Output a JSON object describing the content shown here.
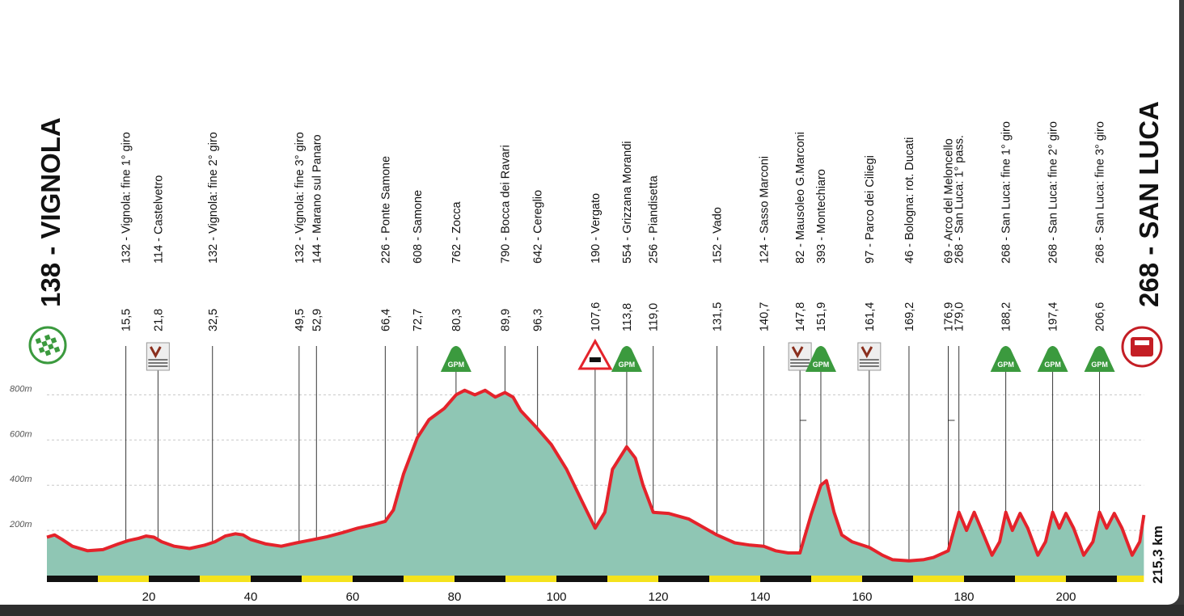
{
  "chart_data": {
    "type": "area",
    "start": {
      "altitude": "138",
      "name": "VIGNOLA"
    },
    "finish": {
      "altitude": "268",
      "name": "SAN LUCA"
    },
    "total_distance": "215,3 km",
    "ylim": [
      0,
      900
    ],
    "xlim": [
      0,
      215.3
    ],
    "y_ticks": [
      {
        "value": 200,
        "label": "200m"
      },
      {
        "value": 400,
        "label": "400m"
      },
      {
        "value": 600,
        "label": "600m"
      },
      {
        "value": 800,
        "label": "800m"
      }
    ],
    "x_ticks": [
      20,
      40,
      60,
      80,
      100,
      120,
      140,
      160,
      180,
      200
    ],
    "colors": {
      "fill": "#8fc6b4",
      "line": "#e4232b",
      "gpm": "#3b9a3e",
      "scale_black": "#111111",
      "scale_yellow": "#f4e21c"
    },
    "profile": [
      [
        0,
        170
      ],
      [
        1.5,
        180
      ],
      [
        3,
        160
      ],
      [
        5,
        130
      ],
      [
        8,
        110
      ],
      [
        11,
        115
      ],
      [
        14,
        140
      ],
      [
        16,
        155
      ],
      [
        18,
        165
      ],
      [
        19.5,
        175
      ],
      [
        21,
        170
      ],
      [
        22.5,
        150
      ],
      [
        25,
        130
      ],
      [
        28,
        120
      ],
      [
        31,
        135
      ],
      [
        33,
        150
      ],
      [
        35,
        175
      ],
      [
        37,
        185
      ],
      [
        38.5,
        180
      ],
      [
        40,
        160
      ],
      [
        43,
        140
      ],
      [
        46,
        130
      ],
      [
        49,
        145
      ],
      [
        52,
        158
      ],
      [
        55,
        172
      ],
      [
        58,
        190
      ],
      [
        61,
        210
      ],
      [
        64,
        225
      ],
      [
        66.4,
        240
      ],
      [
        68,
        290
      ],
      [
        70,
        450
      ],
      [
        72.7,
        610
      ],
      [
        75,
        690
      ],
      [
        78,
        740
      ],
      [
        80.3,
        800
      ],
      [
        82,
        820
      ],
      [
        84,
        800
      ],
      [
        86,
        820
      ],
      [
        88,
        790
      ],
      [
        89.9,
        810
      ],
      [
        91.5,
        790
      ],
      [
        93,
        730
      ],
      [
        96.3,
        650
      ],
      [
        99,
        580
      ],
      [
        102,
        470
      ],
      [
        105,
        330
      ],
      [
        107.6,
        210
      ],
      [
        109.5,
        280
      ],
      [
        111,
        470
      ],
      [
        113.8,
        570
      ],
      [
        115.5,
        520
      ],
      [
        117,
        400
      ],
      [
        119,
        280
      ],
      [
        122,
        275
      ],
      [
        126,
        250
      ],
      [
        131.5,
        180
      ],
      [
        135,
        145
      ],
      [
        138,
        135
      ],
      [
        140.7,
        130
      ],
      [
        143,
        110
      ],
      [
        145.5,
        100
      ],
      [
        147.8,
        100
      ],
      [
        150,
        270
      ],
      [
        151.9,
        400
      ],
      [
        153,
        420
      ],
      [
        154.5,
        280
      ],
      [
        156,
        180
      ],
      [
        158,
        150
      ],
      [
        161.4,
        125
      ],
      [
        164,
        90
      ],
      [
        166,
        70
      ],
      [
        169.2,
        65
      ],
      [
        172,
        70
      ],
      [
        174,
        80
      ],
      [
        176.9,
        110
      ],
      [
        178,
        200
      ],
      [
        179,
        280
      ],
      [
        180.5,
        200
      ],
      [
        182,
        280
      ],
      [
        183.5,
        200
      ],
      [
        185.5,
        90
      ],
      [
        187,
        150
      ],
      [
        188.2,
        280
      ],
      [
        189.5,
        200
      ],
      [
        191,
        275
      ],
      [
        192.5,
        210
      ],
      [
        194.5,
        90
      ],
      [
        196,
        150
      ],
      [
        197.4,
        280
      ],
      [
        198.7,
        210
      ],
      [
        200,
        275
      ],
      [
        201.5,
        210
      ],
      [
        203.5,
        90
      ],
      [
        205.3,
        150
      ],
      [
        206.6,
        280
      ],
      [
        208,
        210
      ],
      [
        209.5,
        275
      ],
      [
        211,
        210
      ],
      [
        213,
        90
      ],
      [
        214.5,
        150
      ],
      [
        215.3,
        268
      ]
    ],
    "waypoints": [
      {
        "km": "15,5",
        "x": 15.5,
        "label": "132 - Vignola: fine 1° giro",
        "icon": null
      },
      {
        "km": "21,8",
        "x": 21.8,
        "label": "114 - Castelvetro",
        "icon": "feed-zone-icon"
      },
      {
        "km": "32,5",
        "x": 32.5,
        "label": "132 - Vignola: fine 2° giro",
        "icon": null
      },
      {
        "km": "49,5",
        "x": 49.5,
        "label": "132 - Vignola: fine 3° giro",
        "icon": null
      },
      {
        "km": "52,9",
        "x": 52.9,
        "label": "144 - Marano sul Panaro",
        "icon": null
      },
      {
        "km": "66,4",
        "x": 66.4,
        "label": "226 - Ponte Samone",
        "icon": null
      },
      {
        "km": "72,7",
        "x": 72.7,
        "label": "608 - Samone",
        "icon": null
      },
      {
        "km": "80,3",
        "x": 80.3,
        "label": "762 - Zocca",
        "icon": "gpm-icon"
      },
      {
        "km": "89,9",
        "x": 89.9,
        "label": "790 - Bocca dei Ravari",
        "icon": null
      },
      {
        "km": "96,3",
        "x": 96.3,
        "label": "642 - Cereglio",
        "icon": null
      },
      {
        "km": "107,6",
        "x": 107.6,
        "label": "190 - Vergato",
        "icon": "level-crossing-icon"
      },
      {
        "km": "113,8",
        "x": 113.8,
        "label": "554 - Grizzana Morandi",
        "icon": "gpm-icon"
      },
      {
        "km": "119,0",
        "x": 119.0,
        "label": "256 - Piandisetta",
        "icon": null
      },
      {
        "km": "131,5",
        "x": 131.5,
        "label": "152 - Vado",
        "icon": null
      },
      {
        "km": "140,7",
        "x": 140.7,
        "label": "124 - Sasso Marconi",
        "icon": null
      },
      {
        "km": "147,8",
        "x": 147.8,
        "label": "82 - Mausoleo G.Marconi",
        "icon": "feed-zone-icon"
      },
      {
        "km": "151,9",
        "x": 151.9,
        "label": "393 - Montechiaro",
        "icon": "gpm-icon"
      },
      {
        "km": "161,4",
        "x": 161.4,
        "label": "97 - Parco dei Ciliegi",
        "icon": "feed-zone-icon"
      },
      {
        "km": "169,2",
        "x": 169.2,
        "label": "46 - Bologna: rot. Ducati",
        "icon": null
      },
      {
        "km": "176,9",
        "x": 176.9,
        "label": "69 - Arco del Meloncello",
        "icon": null
      },
      {
        "km": "179,0",
        "x": 179.0,
        "label": "268 - San Luca: 1° pass.",
        "icon": null
      },
      {
        "km": "188,2",
        "x": 188.2,
        "label": "268 - San Luca: fine 1° giro",
        "icon": "gpm-icon"
      },
      {
        "km": "197,4",
        "x": 197.4,
        "label": "268 - San Luca: fine 2° giro",
        "icon": "gpm-icon"
      },
      {
        "km": "206,6",
        "x": 206.6,
        "label": "268 - San Luca: fine 3° giro",
        "icon": "gpm-icon"
      }
    ],
    "gpm_label": "GPM",
    "start_icon": "checkered-flag-icon",
    "finish_icon": "finish-banner-icon"
  }
}
